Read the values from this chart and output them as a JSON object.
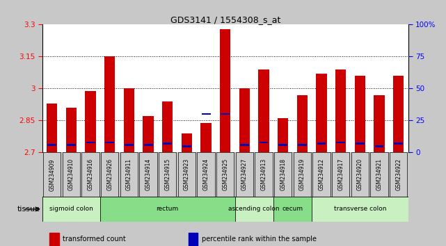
{
  "title": "GDS3141 / 1554308_s_at",
  "samples": [
    "GSM234909",
    "GSM234910",
    "GSM234916",
    "GSM234926",
    "GSM234911",
    "GSM234914",
    "GSM234915",
    "GSM234923",
    "GSM234924",
    "GSM234925",
    "GSM234927",
    "GSM234913",
    "GSM234918",
    "GSM234919",
    "GSM234912",
    "GSM234917",
    "GSM234920",
    "GSM234921",
    "GSM234922"
  ],
  "transformed_count": [
    2.93,
    2.91,
    2.99,
    3.15,
    3.0,
    2.87,
    2.94,
    2.79,
    2.84,
    3.28,
    3.0,
    3.09,
    2.86,
    2.97,
    3.07,
    3.09,
    3.06,
    2.97,
    3.06
  ],
  "percentile_rank_pct": [
    6,
    6,
    8,
    8,
    6,
    6,
    7,
    5,
    30,
    30,
    6,
    8,
    6,
    6,
    7,
    8,
    7,
    5,
    7
  ],
  "ylim_left": [
    2.7,
    3.3
  ],
  "ylim_right": [
    0,
    100
  ],
  "yticks_left": [
    2.7,
    2.85,
    3.0,
    3.15,
    3.3
  ],
  "yticks_right": [
    0,
    25,
    50,
    75,
    100
  ],
  "ytick_labels_left": [
    "2.7",
    "2.85",
    "3",
    "3.15",
    "3.3"
  ],
  "ytick_labels_right": [
    "0",
    "25",
    "50",
    "75",
    "100%"
  ],
  "hlines": [
    2.85,
    3.0,
    3.15
  ],
  "bar_color": "#cc0000",
  "percentile_color": "#0000bb",
  "fig_bg": "#c8c8c8",
  "plot_bg": "#ffffff",
  "xticklabel_bg": "#cccccc",
  "tissue_groups": [
    {
      "label": "sigmoid colon",
      "start": 0,
      "end": 3,
      "color": "#c8f0c0"
    },
    {
      "label": "rectum",
      "start": 3,
      "end": 10,
      "color": "#88dd88"
    },
    {
      "label": "ascending colon",
      "start": 10,
      "end": 12,
      "color": "#c8f0c0"
    },
    {
      "label": "cecum",
      "start": 12,
      "end": 14,
      "color": "#88dd88"
    },
    {
      "label": "transverse colon",
      "start": 14,
      "end": 19,
      "color": "#c8f0c0"
    }
  ],
  "tissue_label": "tissue",
  "legend_items": [
    {
      "color": "#cc0000",
      "label": "transformed count"
    },
    {
      "color": "#0000bb",
      "label": "percentile rank within the sample"
    }
  ],
  "bar_width": 0.55
}
